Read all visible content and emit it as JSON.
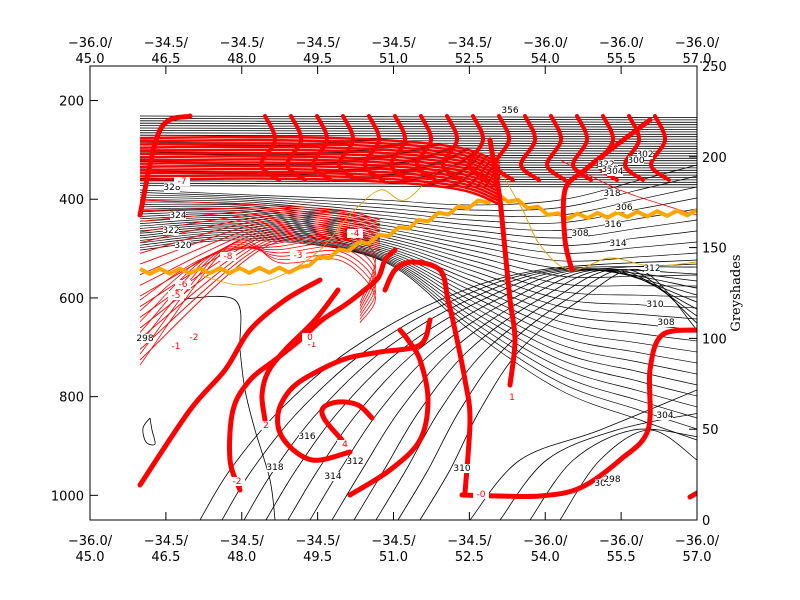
{
  "chart_data": {
    "type": "contour",
    "title": "",
    "xlabel": "",
    "ylabel": "",
    "y_axis": {
      "ticks": [
        200,
        400,
        600,
        800,
        1000
      ],
      "range": [
        1050,
        130
      ]
    },
    "x_axis": {
      "ticks_top": [
        [
          "−36.0/",
          "45.0"
        ],
        [
          "−34.5/",
          "46.5"
        ],
        [
          "−34.5/",
          "48.0"
        ],
        [
          "−34.5/",
          "49.5"
        ],
        [
          "−34.5/",
          "51.0"
        ],
        [
          "−34.5/",
          "52.5"
        ],
        [
          "−36.0/",
          "54.0"
        ],
        [
          "−36.0/",
          "55.5"
        ],
        [
          "−36.0/",
          "57.0"
        ]
      ],
      "ticks_bottom": [
        [
          "−36.0/",
          "45.0"
        ],
        [
          "−34.5/",
          "46.5"
        ],
        [
          "−34.5/",
          "48.0"
        ],
        [
          "−34.5/",
          "49.5"
        ],
        [
          "−34.5/",
          "51.0"
        ],
        [
          "−34.5/",
          "52.5"
        ],
        [
          "−36.0/",
          "54.0"
        ],
        [
          "−36.0/",
          "55.5"
        ],
        [
          "−36.0/",
          "57.0"
        ]
      ]
    },
    "right_axis": {
      "label": "Greyshades",
      "ticks": [
        0,
        50,
        100,
        150,
        200,
        250
      ],
      "range": [
        0,
        250
      ]
    },
    "black_contour_labels": [
      "356",
      "322",
      "320",
      "318",
      "316",
      "314",
      "312",
      "310",
      "308",
      "304",
      "300",
      "298",
      "328",
      "324",
      "322",
      "320",
      "318",
      "316",
      "314",
      "312",
      "310",
      "308",
      "306",
      "304",
      "302",
      "300",
      "298"
    ],
    "red_thin_labels": [
      "-8",
      "-6",
      "-5",
      "-3",
      "-2",
      "-1",
      "-4",
      "-7"
    ],
    "red_thick_labels": [
      "-1",
      "0",
      "2",
      "-2",
      "4",
      "1",
      "-0"
    ],
    "colors": {
      "black": "#000000",
      "red": "#ff0000",
      "orange": "#ffa500",
      "orange_thin": "#e8a000"
    }
  }
}
